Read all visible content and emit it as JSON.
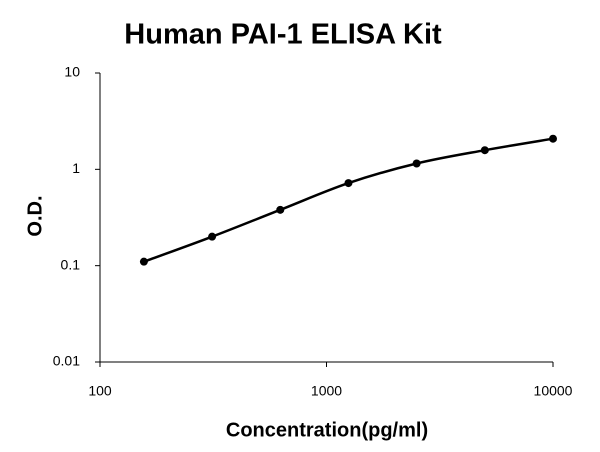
{
  "chart_data": {
    "type": "line",
    "title": "Human PAI-1 ELISA Kit",
    "x_label": "Concentration(pg/ml)",
    "y_label": "O.D.",
    "x": [
      156.25,
      312.5,
      625,
      1250,
      2500,
      5000,
      10000
    ],
    "series": [
      {
        "name": "PAI-1",
        "color": "#000000",
        "values": [
          0.11,
          0.2,
          0.38,
          0.72,
          1.15,
          1.58,
          2.08
        ]
      }
    ],
    "xlim": [
      100,
      10000
    ],
    "xticks": [
      100,
      1000,
      10000
    ],
    "ylim": [
      0.01,
      10
    ],
    "yticks": [
      0.01,
      0.1,
      1,
      10
    ],
    "xlog": true,
    "ylog": true,
    "grid": false,
    "legend": false
  }
}
